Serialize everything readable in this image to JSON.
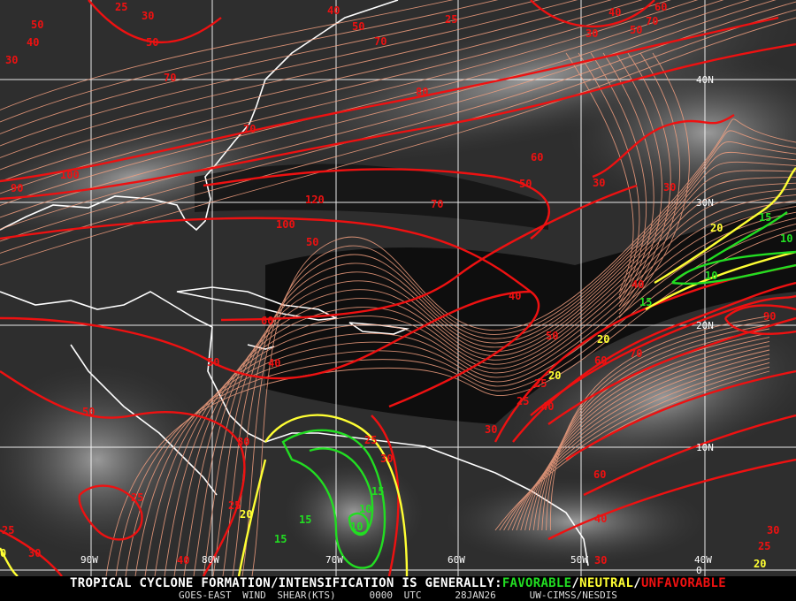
{
  "footer": {
    "headline_prefix": "TROPICAL CYCLONE FORMATION/INTENSIFICATION IS GENERALLY:",
    "favorable": "FAVORABLE",
    "sep1": "/",
    "neutral": "NEUTRAL",
    "sep2": "/",
    "unfavorable": "UNFAVORABLE",
    "product": "GOES-EAST WIND SHEAR(KTS)",
    "time": "0000 UTC",
    "date": "28JAN26",
    "source": "UW-CIMSS/NESDIS"
  },
  "colors": {
    "favorable": "#22dd22",
    "neutral": "#ffff33",
    "unfavorable": "#ee1111",
    "streamlines": "#f4a080",
    "grid": "#ffffff",
    "coastline": "#ffffff"
  },
  "grid": {
    "longitudes": [
      "90W",
      "80W",
      "70W",
      "60W",
      "50W",
      "40W"
    ],
    "latitudes": [
      "40N",
      "30N",
      "20N",
      "10N",
      "0"
    ]
  },
  "contour_labels": {
    "unfavorable": [
      "50",
      "40",
      "30",
      "25",
      "30",
      "50",
      "70",
      "70",
      "90",
      "100",
      "120",
      "100",
      "50",
      "70",
      "80",
      "60",
      "50",
      "30",
      "30",
      "40",
      "40",
      "60",
      "50",
      "40",
      "50",
      "50",
      "30",
      "25",
      "30",
      "25",
      "25",
      "40",
      "30",
      "25",
      "30",
      "25",
      "25",
      "40",
      "40",
      "30",
      "25",
      "30",
      "60",
      "60",
      "70",
      "40",
      "50",
      "60",
      "70",
      "30",
      "70",
      "40",
      "50",
      "25",
      "90"
    ],
    "neutral": [
      "20",
      "20",
      "20",
      "20",
      "0",
      "20"
    ],
    "favorable": [
      "15",
      "10",
      "10",
      "15",
      "15",
      "15",
      "15",
      "10",
      "10"
    ]
  }
}
